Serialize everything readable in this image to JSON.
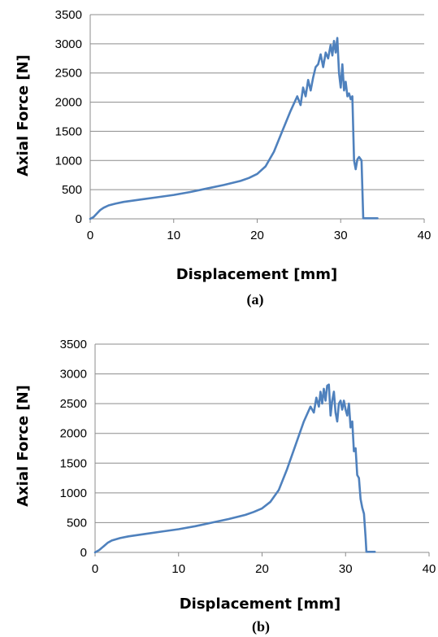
{
  "colors": {
    "series": "#4f81bd",
    "grid": "#8c8c8c"
  },
  "chart_data": [
    {
      "type": "line",
      "caption": "(a)",
      "xlabel": "Displacement [mm]",
      "ylabel": "Axial Force [N]",
      "xlim": [
        0,
        40
      ],
      "ylim": [
        0,
        3500
      ],
      "xticks": [
        0,
        10,
        20,
        30,
        40
      ],
      "yticks": [
        0,
        500,
        1000,
        1500,
        2000,
        2500,
        3000,
        3500
      ],
      "grid": "horizontal",
      "series": [
        {
          "x": [
            0,
            0.4,
            0.8,
            1.2,
            1.6,
            2.2,
            3,
            4,
            6,
            8,
            10,
            12,
            14,
            16,
            18,
            19,
            20,
            21,
            22,
            23,
            24,
            24.8,
            25.2,
            25.5,
            25.8,
            26.1,
            26.4,
            26.7,
            27.0,
            27.3,
            27.6,
            27.9,
            28.2,
            28.5,
            28.8,
            29.0,
            29.2,
            29.4,
            29.6,
            29.8,
            30.0,
            30.2,
            30.4,
            30.6,
            30.8,
            31.0,
            31.2,
            31.4,
            31.6,
            31.8,
            32.0,
            32.2,
            32.5,
            32.7,
            32.9,
            33.0,
            33.2,
            34.4
          ],
          "y": [
            0,
            30,
            90,
            150,
            190,
            230,
            260,
            290,
            330,
            370,
            410,
            460,
            520,
            580,
            650,
            700,
            770,
            900,
            1150,
            1500,
            1850,
            2100,
            1950,
            2250,
            2100,
            2380,
            2200,
            2420,
            2600,
            2650,
            2820,
            2600,
            2850,
            2750,
            2980,
            2800,
            3050,
            2850,
            3100,
            2500,
            2250,
            2650,
            2200,
            2350,
            2100,
            2150,
            2050,
            2100,
            1000,
            850,
            1020,
            1060,
            1000,
            10,
            10,
            10,
            10,
            10
          ]
        }
      ]
    },
    {
      "type": "line",
      "caption": "(b)",
      "xlabel": "Displacement [mm]",
      "ylabel": "Axial Force [N]",
      "xlim": [
        0,
        40
      ],
      "ylim": [
        0,
        3500
      ],
      "xticks": [
        0,
        10,
        20,
        30,
        40
      ],
      "yticks": [
        0,
        500,
        1000,
        1500,
        2000,
        2500,
        3000,
        3500
      ],
      "grid": "horizontal",
      "series": [
        {
          "x": [
            0,
            0.5,
            1.0,
            1.5,
            2.0,
            3,
            4,
            6,
            8,
            10,
            12,
            14,
            16,
            18,
            19,
            20,
            21,
            22,
            23,
            24,
            25,
            25.8,
            26.2,
            26.5,
            26.8,
            27.0,
            27.2,
            27.4,
            27.6,
            27.8,
            28.0,
            28.2,
            28.4,
            28.6,
            28.8,
            29.0,
            29.2,
            29.4,
            29.6,
            29.8,
            30.0,
            30.2,
            30.4,
            30.6,
            30.8,
            31.0,
            31.2,
            31.4,
            31.6,
            31.8,
            32.0,
            32.2,
            32.4,
            32.5,
            32.7,
            33.0,
            33.5
          ],
          "y": [
            0,
            40,
            100,
            160,
            200,
            240,
            270,
            310,
            350,
            390,
            440,
            500,
            560,
            630,
            680,
            740,
            850,
            1050,
            1400,
            1800,
            2200,
            2450,
            2350,
            2600,
            2450,
            2700,
            2500,
            2750,
            2550,
            2800,
            2820,
            2300,
            2550,
            2700,
            2350,
            2200,
            2500,
            2550,
            2400,
            2550,
            2400,
            2300,
            2500,
            2100,
            2200,
            1700,
            1750,
            1300,
            1250,
            900,
            750,
            650,
            250,
            10,
            10,
            10,
            10
          ]
        }
      ]
    }
  ]
}
